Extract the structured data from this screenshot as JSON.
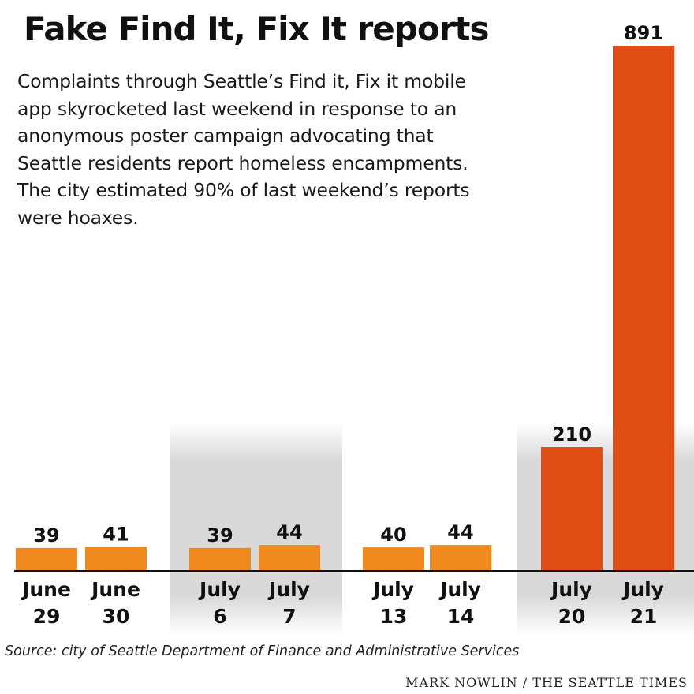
{
  "chart_data": {
    "type": "bar",
    "title": "Fake Find It, Fix It reports",
    "subtitle": "Complaints through Seattle’s Find it, Fix it mobile app skyrocketed last weekend in response to an anonymous poster campaign advocating that Seattle residents report homeless encampments. The city estimated 90% of last weekend’s reports were hoaxes.",
    "categories": [
      [
        "June",
        "29"
      ],
      [
        "June",
        "30"
      ],
      [
        "July",
        "6"
      ],
      [
        "July",
        "7"
      ],
      [
        "July",
        "13"
      ],
      [
        "July",
        "14"
      ],
      [
        "July",
        "20"
      ],
      [
        "July",
        "21"
      ]
    ],
    "values": [
      39,
      41,
      39,
      44,
      40,
      44,
      210,
      891
    ],
    "ylim": [
      0,
      891
    ],
    "highlighted_weekends": [
      1,
      3
    ],
    "colors": {
      "normal": "#f08a1e",
      "hoax": "#e04e16",
      "weekend_shade": "#d9d9d9"
    },
    "source": "Source: city of Seattle Department of Finance and Administrative Services",
    "credit": "MARK NOWLIN / THE SEATTLE TIMES"
  }
}
